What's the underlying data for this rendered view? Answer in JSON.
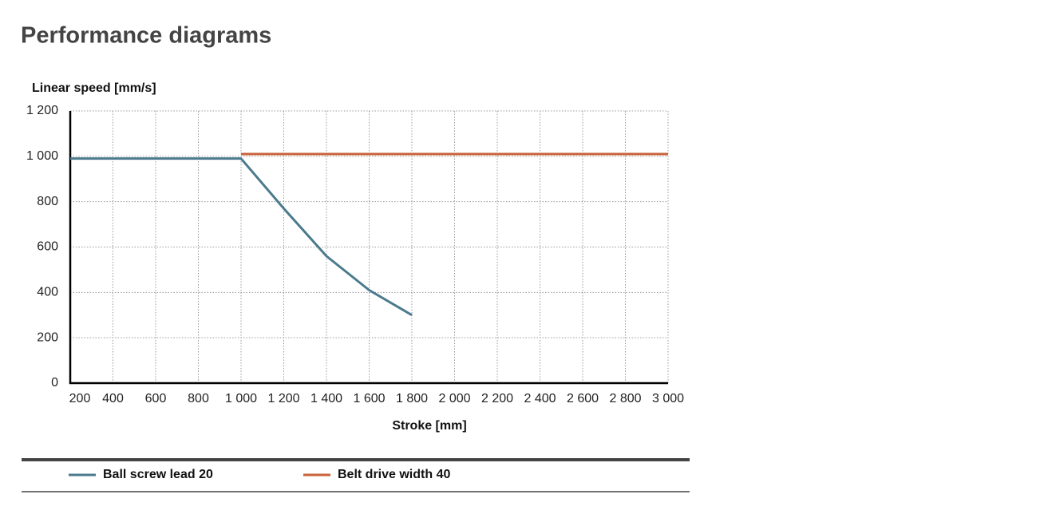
{
  "chart_data": {
    "type": "line",
    "title": "Performance diagrams",
    "ylabel": "Linear speed [mm/s]",
    "xlabel": "Stroke [mm]",
    "xlim": [
      200,
      3000
    ],
    "ylim": [
      0,
      1200
    ],
    "xticks": [
      200,
      400,
      600,
      800,
      {
        "value": 1000,
        "label": "1 000"
      },
      {
        "value": 1200,
        "label": "1 200"
      },
      {
        "value": 1400,
        "label": "1 400"
      },
      {
        "value": 1600,
        "label": "1 600"
      },
      {
        "value": 1800,
        "label": "1 800"
      },
      {
        "value": 2000,
        "label": "2 000"
      },
      {
        "value": 2200,
        "label": "2 200"
      },
      {
        "value": 2400,
        "label": "2 400"
      },
      {
        "value": 2600,
        "label": "2 600"
      },
      {
        "value": 2800,
        "label": "2 800"
      },
      {
        "value": 3000,
        "label": "3 000"
      }
    ],
    "yticks": [
      0,
      200,
      400,
      600,
      800,
      {
        "value": 1000,
        "label": "1 000"
      },
      {
        "value": 1200,
        "label": "1 200"
      }
    ],
    "grid": true,
    "series": [
      {
        "name": "Ball screw lead 20",
        "color": "#4a7a8c",
        "x": [
          200,
          1000,
          1200,
          1400,
          1600,
          1800
        ],
        "values": [
          990,
          990,
          770,
          560,
          410,
          300
        ]
      },
      {
        "name": "Belt drive width 40",
        "color": "#c8623a",
        "x": [
          1000,
          3000
        ],
        "values": [
          1010,
          1010
        ]
      }
    ]
  }
}
